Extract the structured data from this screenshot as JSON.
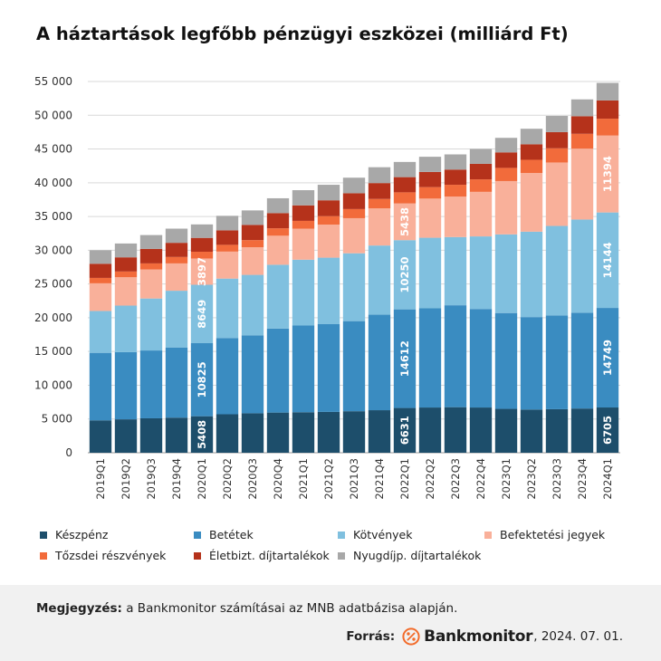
{
  "title": "A háztartások legfőbb pénzügyi eszközei (milliárd Ft)",
  "chart_data": {
    "type": "bar",
    "stacked": true,
    "categories": [
      "2019Q1",
      "2019Q2",
      "2019Q3",
      "2019Q4",
      "2020Q1",
      "2020Q2",
      "2020Q3",
      "2020Q4",
      "2021Q1",
      "2021Q2",
      "2021Q3",
      "2021Q4",
      "2022Q1",
      "2022Q2",
      "2022Q3",
      "2022Q4",
      "2023Q1",
      "2023Q2",
      "2023Q3",
      "2023Q4",
      "2024Q1"
    ],
    "ylim": [
      0,
      55000
    ],
    "yticks": [
      0,
      5000,
      10000,
      15000,
      20000,
      25000,
      30000,
      35000,
      40000,
      45000,
      50000,
      55000
    ],
    "ytick_labels": [
      "0",
      "5 000",
      "10 000",
      "15 000",
      "20 000",
      "25 000",
      "30 000",
      "35 000",
      "40 000",
      "45 000",
      "50 000",
      "55 000"
    ],
    "grid": true,
    "legend_position": "bottom",
    "series": [
      {
        "name": "Készpénz",
        "color": "#1d4e6b",
        "values": [
          4800,
          4950,
          5100,
          5200,
          5408,
          5700,
          5850,
          5950,
          6000,
          6050,
          6150,
          6300,
          6631,
          6700,
          6750,
          6700,
          6500,
          6400,
          6450,
          6550,
          6705
        ]
      },
      {
        "name": "Betétek",
        "color": "#3a8cc1",
        "values": [
          10000,
          9950,
          10050,
          10400,
          10825,
          11300,
          11550,
          12450,
          12850,
          13000,
          13350,
          14150,
          14612,
          14700,
          15100,
          14600,
          14200,
          13700,
          13900,
          14200,
          14749
        ]
      },
      {
        "name": "Kötvények",
        "color": "#80c0df",
        "values": [
          6200,
          6900,
          7700,
          8400,
          8649,
          8800,
          8950,
          9450,
          9750,
          9850,
          10050,
          10250,
          10250,
          10450,
          10100,
          10750,
          11650,
          12650,
          13250,
          13800,
          14144
        ]
      },
      {
        "name": "Befektetési jegyek",
        "color": "#f9b09a",
        "values": [
          4100,
          4200,
          4300,
          4050,
          3897,
          4000,
          4100,
          4300,
          4600,
          4900,
          5200,
          5500,
          5438,
          5800,
          6000,
          6600,
          7900,
          8700,
          9400,
          10500,
          11394
        ]
      },
      {
        "name": "Tőzsdei részvények",
        "color": "#f26b3b",
        "values": [
          800,
          850,
          900,
          950,
          1000,
          1000,
          1050,
          1100,
          1150,
          1250,
          1350,
          1400,
          1650,
          1700,
          1750,
          1850,
          1950,
          1950,
          2100,
          2200,
          2500
        ]
      },
      {
        "name": "Életbizt. díjtartalékok",
        "color": "#b5321b",
        "values": [
          2100,
          2100,
          2150,
          2100,
          2050,
          2150,
          2250,
          2250,
          2300,
          2350,
          2350,
          2350,
          2250,
          2250,
          2250,
          2300,
          2300,
          2300,
          2400,
          2600,
          2700
        ]
      },
      {
        "name": "Nyugdíjp. díjtartalékok",
        "color": "#a8a8a8",
        "values": [
          2000,
          2050,
          2050,
          2100,
          2000,
          2150,
          2150,
          2200,
          2250,
          2300,
          2300,
          2350,
          2250,
          2250,
          2250,
          2200,
          2150,
          2300,
          2400,
          2500,
          2600
        ]
      }
    ],
    "data_labels": [
      {
        "category": "2020Q1",
        "series": 0,
        "text": "5408"
      },
      {
        "category": "2020Q1",
        "series": 1,
        "text": "10825"
      },
      {
        "category": "2020Q1",
        "series": 2,
        "text": "8649"
      },
      {
        "category": "2020Q1",
        "series": 3,
        "text": "3897"
      },
      {
        "category": "2022Q1",
        "series": 0,
        "text": "6631"
      },
      {
        "category": "2022Q1",
        "series": 1,
        "text": "14612"
      },
      {
        "category": "2022Q1",
        "series": 2,
        "text": "10250"
      },
      {
        "category": "2022Q1",
        "series": 3,
        "text": "5438"
      },
      {
        "category": "2024Q1",
        "series": 0,
        "text": "6705"
      },
      {
        "category": "2024Q1",
        "series": 1,
        "text": "14749"
      },
      {
        "category": "2024Q1",
        "series": 2,
        "text": "14144"
      },
      {
        "category": "2024Q1",
        "series": 3,
        "text": "11394"
      }
    ]
  },
  "footer": {
    "note_label": "Megjegyzés:",
    "note_text": " a Bankmonitor számításai az MNB adatbázisa alapján.",
    "source_label": "Forrás:",
    "brand": "Bankmonitor",
    "date": ", 2024. 07. 01.",
    "logo_icon": "percent-circle-icon",
    "brand_color": "#f26b2a"
  }
}
